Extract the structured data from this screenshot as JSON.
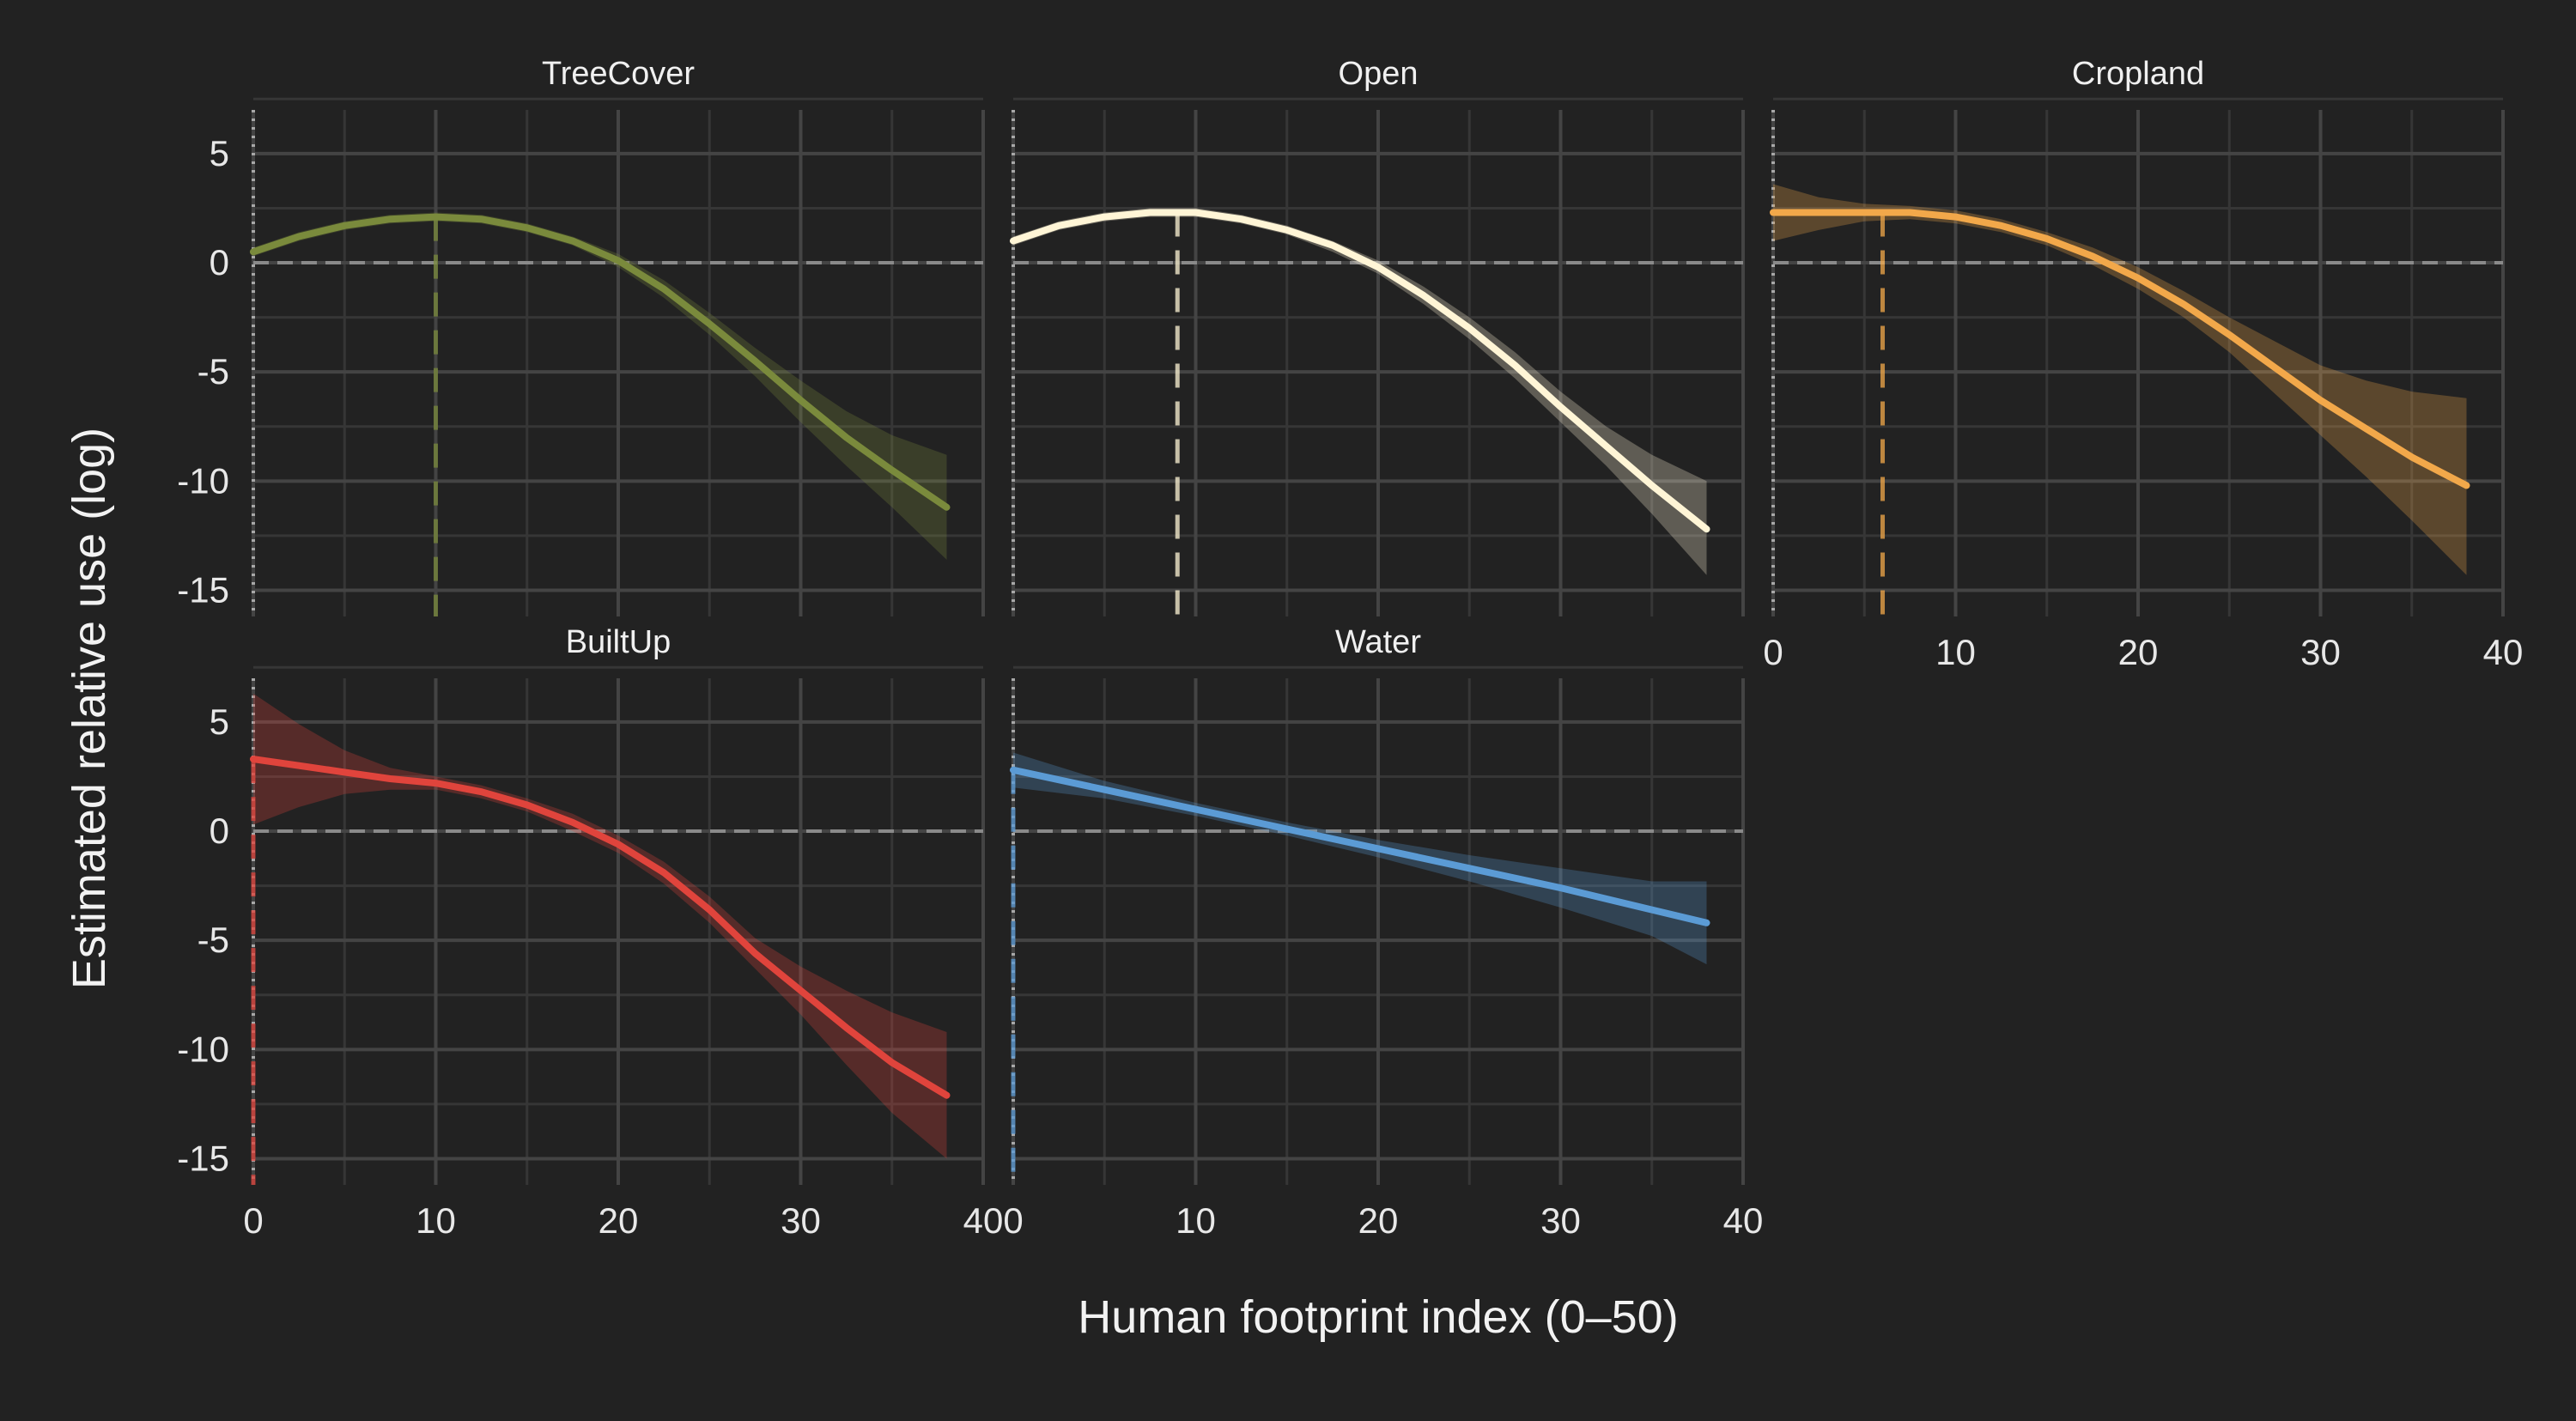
{
  "chart_data": {
    "type": "line",
    "xlabel": "Human footprint index (0–50)",
    "ylabel": "Estimated relative use (log)",
    "xlim": [
      0,
      40
    ],
    "ylim": [
      -16.2,
      7
    ],
    "x_ticks": [
      0,
      10,
      20,
      30,
      40
    ],
    "y_ticks": [
      5,
      0,
      -5,
      -10,
      -15
    ],
    "grid": true,
    "reference_lines": {
      "x_zero": "dotted",
      "y_zero": "dashed"
    },
    "panels": [
      {
        "name": "TreeCover",
        "color": "#7a8a3c",
        "vline_x": 10,
        "x": [
          0,
          2.5,
          5,
          7.5,
          10,
          12.5,
          15,
          17.5,
          20,
          22.5,
          25,
          27.5,
          30,
          32.5,
          35,
          38
        ],
        "values": [
          0.5,
          1.2,
          1.7,
          2.0,
          2.1,
          2.0,
          1.6,
          1.0,
          0.1,
          -1.2,
          -2.8,
          -4.5,
          -6.3,
          -8.0,
          -9.5,
          -11.2
        ],
        "lower": [
          0.3,
          1.0,
          1.5,
          1.8,
          1.9,
          1.8,
          1.4,
          0.8,
          -0.2,
          -1.6,
          -3.3,
          -5.2,
          -7.3,
          -9.3,
          -11.2,
          -13.6
        ],
        "upper": [
          0.7,
          1.4,
          1.9,
          2.2,
          2.3,
          2.2,
          1.8,
          1.2,
          0.4,
          -0.8,
          -2.3,
          -3.9,
          -5.4,
          -6.8,
          -7.9,
          -8.8
        ]
      },
      {
        "name": "Open",
        "color": "#fff5d6",
        "vline_x": 9,
        "x": [
          0,
          2.5,
          5,
          7.5,
          10,
          12.5,
          15,
          17.5,
          20,
          22.5,
          25,
          27.5,
          30,
          32.5,
          35,
          38
        ],
        "values": [
          1.0,
          1.7,
          2.1,
          2.3,
          2.3,
          2.0,
          1.5,
          0.8,
          -0.2,
          -1.5,
          -3.0,
          -4.7,
          -6.6,
          -8.4,
          -10.2,
          -12.2
        ],
        "lower": [
          0.8,
          1.5,
          1.9,
          2.1,
          2.1,
          1.8,
          1.3,
          0.5,
          -0.5,
          -1.9,
          -3.5,
          -5.3,
          -7.3,
          -9.3,
          -11.5,
          -14.3
        ],
        "upper": [
          1.2,
          1.9,
          2.3,
          2.5,
          2.5,
          2.2,
          1.7,
          1.0,
          0.1,
          -1.1,
          -2.5,
          -4.1,
          -5.9,
          -7.5,
          -8.8,
          -10.0
        ]
      },
      {
        "name": "Cropland",
        "color": "#f2a84a",
        "vline_x": 6,
        "x": [
          0,
          2.5,
          5,
          7.5,
          10,
          12.5,
          15,
          17.5,
          20,
          22.5,
          25,
          27.5,
          30,
          32.5,
          35,
          38
        ],
        "values": [
          2.3,
          2.3,
          2.3,
          2.3,
          2.1,
          1.7,
          1.1,
          0.3,
          -0.7,
          -1.9,
          -3.3,
          -4.8,
          -6.3,
          -7.6,
          -8.9,
          -10.2
        ],
        "lower": [
          1.0,
          1.5,
          1.9,
          2.0,
          1.8,
          1.4,
          0.8,
          -0.1,
          -1.2,
          -2.5,
          -4.1,
          -6.0,
          -7.9,
          -9.8,
          -11.8,
          -14.3
        ],
        "upper": [
          3.6,
          3.0,
          2.7,
          2.6,
          2.4,
          2.0,
          1.4,
          0.7,
          -0.2,
          -1.3,
          -2.5,
          -3.6,
          -4.7,
          -5.4,
          -5.9,
          -6.2
        ]
      },
      {
        "name": "BuiltUp",
        "color": "#e0443c",
        "vline_x": 0,
        "x": [
          0,
          2.5,
          5,
          7.5,
          10,
          12.5,
          15,
          17.5,
          20,
          22.5,
          25,
          27.5,
          30,
          32.5,
          35,
          38
        ],
        "values": [
          3.3,
          3.0,
          2.7,
          2.4,
          2.2,
          1.8,
          1.2,
          0.4,
          -0.6,
          -1.9,
          -3.6,
          -5.6,
          -7.3,
          -9.0,
          -10.6,
          -12.1
        ],
        "lower": [
          0.3,
          1.1,
          1.7,
          1.9,
          1.9,
          1.5,
          0.9,
          0.0,
          -1.0,
          -2.4,
          -4.2,
          -6.3,
          -8.4,
          -10.7,
          -12.9,
          -15.0
        ],
        "upper": [
          6.3,
          4.9,
          3.7,
          2.9,
          2.5,
          2.1,
          1.5,
          0.8,
          -0.2,
          -1.4,
          -3.0,
          -4.9,
          -6.2,
          -7.3,
          -8.3,
          -9.2
        ]
      },
      {
        "name": "Water",
        "color": "#5b9bd5",
        "vline_x": 0,
        "x": [
          0,
          5,
          10,
          15,
          20,
          25,
          30,
          35,
          38
        ],
        "values": [
          2.8,
          1.9,
          1.0,
          0.1,
          -0.8,
          -1.7,
          -2.6,
          -3.6,
          -4.2
        ],
        "lower": [
          2.0,
          1.5,
          0.7,
          -0.2,
          -1.2,
          -2.3,
          -3.5,
          -4.8,
          -6.1
        ],
        "upper": [
          3.6,
          2.3,
          1.3,
          0.4,
          -0.4,
          -1.1,
          -1.7,
          -2.3,
          -2.3
        ]
      }
    ]
  }
}
